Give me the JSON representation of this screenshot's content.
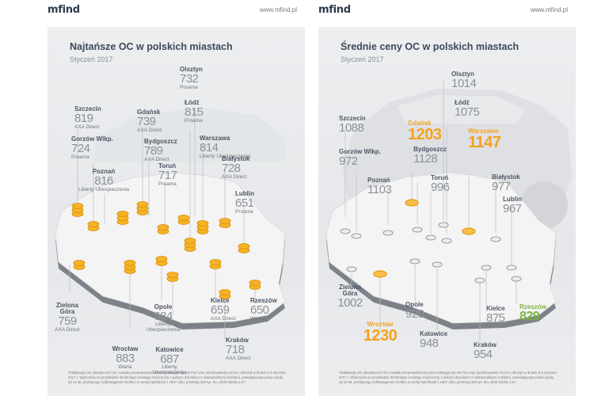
{
  "brand": {
    "logo": "mfind",
    "url": "www.mfind.pl"
  },
  "colors": {
    "accent_orange": "#f4a21d",
    "accent_green": "#7cb342",
    "panel_bg": "#e8e9eb",
    "text_gray": "#8b9199"
  },
  "left": {
    "title": "Najtańsze OC w polskich miastach",
    "subtitle": "Styczeń 2017",
    "cities": {
      "szczecin": {
        "name": "Szczecin",
        "price": "819",
        "insurer": "AXA Direct"
      },
      "gorzow": {
        "name": "Gorzów Wlkp.",
        "price": "724",
        "insurer": "Proama"
      },
      "poznan": {
        "name": "Poznań",
        "price": "816",
        "insurer": "Liberty Ubezpieczenia"
      },
      "gdansk": {
        "name": "Gdańsk",
        "price": "739",
        "insurer": "AXA Direct"
      },
      "bydgoszcz": {
        "name": "Bydgoszcz",
        "price": "789",
        "insurer": "AXA Direct"
      },
      "torun": {
        "name": "Toruń",
        "price": "717",
        "insurer": "Proama"
      },
      "olsztyn": {
        "name": "Olsztyn",
        "price": "732",
        "insurer": "Proama"
      },
      "lodz": {
        "name": "Łódź",
        "price": "815",
        "insurer": "Proama"
      },
      "warszawa": {
        "name": "Warszawa",
        "price": "814",
        "insurer": "Liberty Ubezpieczenia"
      },
      "bialystok": {
        "name": "Białystok",
        "price": "728",
        "insurer": "AXA Direct"
      },
      "lublin": {
        "name": "Lublin",
        "price": "651",
        "insurer": "Proama"
      },
      "zielona": {
        "name": "Zielona Góra",
        "price": "759",
        "insurer": "AXA Direct"
      },
      "opole": {
        "name": "Opole",
        "price": "684",
        "insurer": "Liberty Ubezpieczenia"
      },
      "wroclaw": {
        "name": "Wrocław",
        "price": "883",
        "insurer": "Warta"
      },
      "katowice": {
        "name": "Katowice",
        "price": "687",
        "insurer": "Liberty Ubezpieczenia"
      },
      "kielce": {
        "name": "Kielce",
        "price": "659",
        "insurer": "AXA Direct"
      },
      "rzeszow": {
        "name": "Rzeszów",
        "price": "650",
        "insurer": "Warta"
      },
      "krakow": {
        "name": "Kraków",
        "price": "718",
        "insurer": "AXA Direct"
      }
    },
    "footnote": "*Kalkulacja cen ubezpieczeń OC została przeprowadzona przez multiagencję AB Port oraz porównywarkę OC/AC mfind.pl w dniach 3-5 stycznia 2017 r. Wyliczenie na przykładzie 36-letniego żonatego mężczyzny z jednym dzieckiem z maksymalnymi zniżkami, posiadającego prawo jazdy od 16 lat, jeżdżącego Volkswagenem Golfem w wersji hatchback z 2007 roku, przebieg 200 tys. km, silnik Diesla 1.9 l."
  },
  "right": {
    "title": "Średnie ceny OC w polskich miastach",
    "subtitle": "Styczeń 2017",
    "cities": {
      "szczecin": {
        "name": "Szczecin",
        "price": "1088"
      },
      "gorzow": {
        "name": "Gorzów Wlkp.",
        "price": "972"
      },
      "poznan": {
        "name": "Poznań",
        "price": "1103"
      },
      "gdansk": {
        "name": "Gdańsk",
        "price": "1203"
      },
      "bydgoszcz": {
        "name": "Bydgoszcz",
        "price": "1128"
      },
      "torun": {
        "name": "Toruń",
        "price": "996"
      },
      "olsztyn": {
        "name": "Olsztyn",
        "price": "1014"
      },
      "lodz": {
        "name": "Łódź",
        "price": "1075"
      },
      "warszawa": {
        "name": "Warszawa",
        "price": "1147"
      },
      "bialystok": {
        "name": "Białystok",
        "price": "977"
      },
      "lublin": {
        "name": "Lublin",
        "price": "967"
      },
      "zielona": {
        "name": "Zielona Góra",
        "price": "1002"
      },
      "opole": {
        "name": "Opole",
        "price": "920"
      },
      "wroclaw": {
        "name": "Wrocław",
        "price": "1230"
      },
      "katowice": {
        "name": "Katowice",
        "price": "948"
      },
      "kielce": {
        "name": "Kielce",
        "price": "875"
      },
      "rzeszow": {
        "name": "Rzeszów",
        "price": "829"
      },
      "krakow": {
        "name": "Kraków",
        "price": "954"
      }
    },
    "footnote": "*Kalkulacja cen ubezpieczeń OC została przeprowadzona przez multiagencję AB Port oraz porównywarkę OC/AC mfind.pl w dniach 3-5 stycznia 2017 r. Wyliczenie na przykładzie 36-letniego żonatego mężczyzny z jednym dzieckiem z maksymalnymi zniżkami, posiadającego prawo jazdy od 16 lat, jeżdżącego Volkswagenem Golfem w wersji hatchback z 2007 roku, przebieg 200 tys. km, silnik Diesla 1.9 l."
  }
}
